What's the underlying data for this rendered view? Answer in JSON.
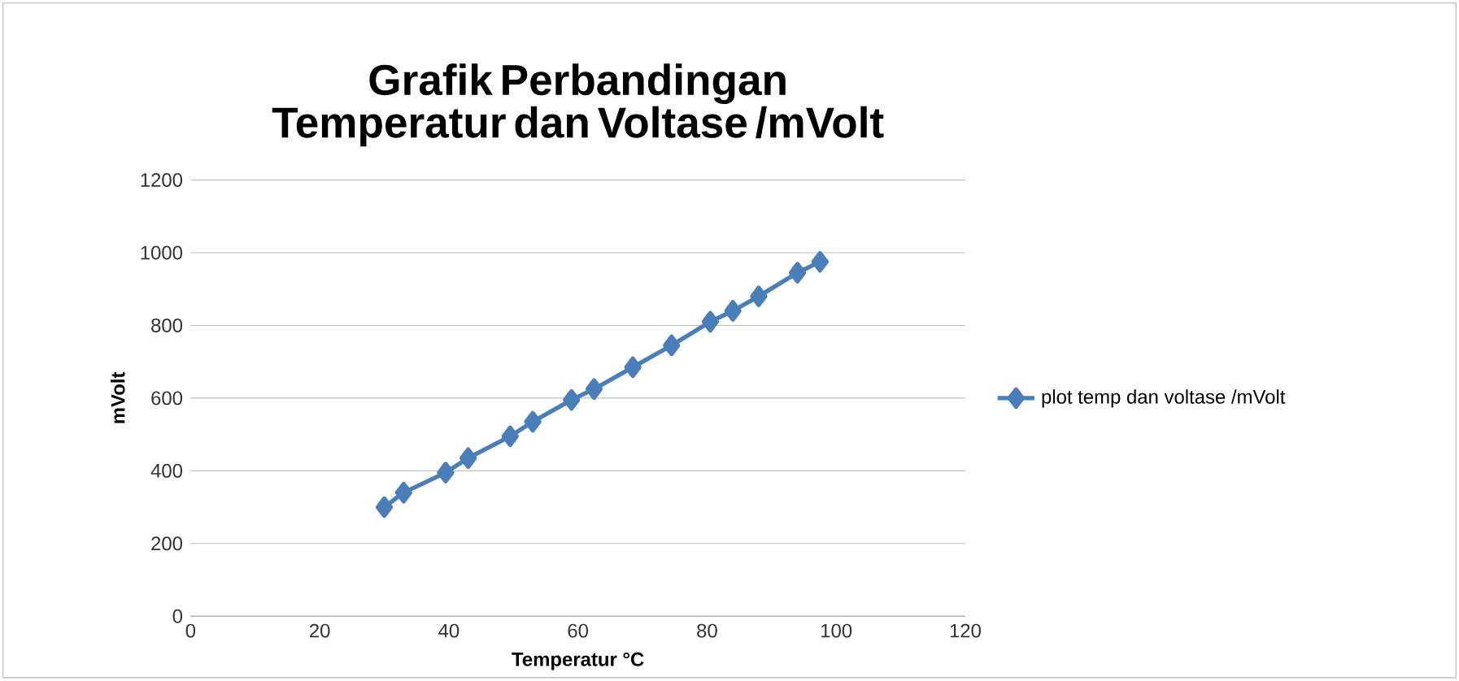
{
  "chart_data": {
    "type": "line",
    "title": "Grafik Perbandingan Temperatur dan Voltase /mVolt",
    "xlabel": "Temperatur °C",
    "ylabel": "mVolt",
    "x": [
      30,
      33,
      39.5,
      43,
      49.5,
      53,
      59,
      62.5,
      68.5,
      74.5,
      80.5,
      84,
      88,
      94,
      97.5
    ],
    "series": [
      {
        "name": "plot temp dan voltase /mVolt",
        "color": "#4a7ebb",
        "values": [
          300,
          340,
          395,
          435,
          495,
          535,
          595,
          625,
          685,
          745,
          810,
          840,
          880,
          945,
          975
        ]
      }
    ],
    "xlim": [
      0,
      120
    ],
    "xticks": [
      0,
      20,
      40,
      60,
      80,
      100,
      120
    ],
    "ylim": [
      0,
      1200
    ],
    "yticks": [
      0,
      200,
      400,
      600,
      800,
      1000,
      1200
    ],
    "grid": "y",
    "legend": "right",
    "marker": "diamond",
    "line_style": "solid"
  }
}
